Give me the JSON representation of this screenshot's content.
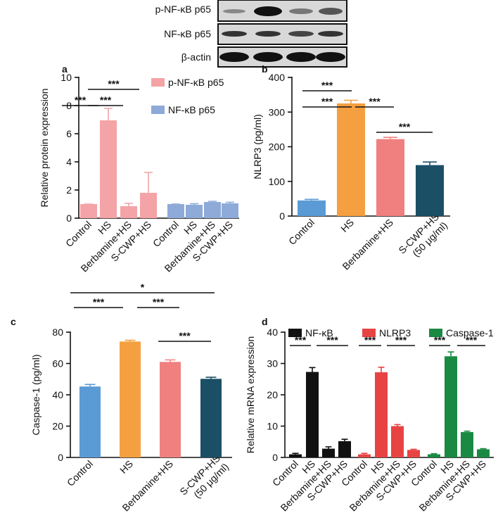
{
  "blot": {
    "rows": [
      "p-NF-κB p65",
      "NF-κB p65",
      "β-actin"
    ]
  },
  "chart_data": [
    {
      "type": "bar",
      "label": "a",
      "ylabel": "Relative protein expression",
      "categories": [
        "Control",
        "HS",
        "Berbamine+HS",
        "S-CWP+HS",
        "Control",
        "HS",
        "Berbamine+HS",
        "S-CWP+HS"
      ],
      "series": [
        {
          "name": "p-NF-κB p65",
          "color": "#f4a3a6",
          "values": [
            1,
            6.95,
            0.85,
            1.8,
            null,
            null,
            null,
            null
          ],
          "errors": [
            0,
            0.85,
            0.2,
            1.45,
            null,
            null,
            null,
            null
          ]
        },
        {
          "name": "NF-κB p65",
          "color": "#8eaad8",
          "values": [
            null,
            null,
            null,
            null,
            1,
            0.95,
            1.15,
            1.05
          ],
          "errors": [
            null,
            null,
            null,
            null,
            0,
            0.08,
            0.05,
            0.08
          ]
        }
      ],
      "ylim": [
        0,
        10
      ],
      "yticks": [
        0,
        2,
        4,
        6,
        8,
        10
      ],
      "annotations": [
        "***",
        "***",
        "***"
      ]
    },
    {
      "type": "bar",
      "label": "b",
      "ylabel": "NLRP3 (pg/ml)",
      "categories": [
        "Control",
        "HS",
        "Berbamine+HS",
        [
          "S-CWP+HS",
          "(50 μg/ml)"
        ]
      ],
      "values": [
        45,
        325,
        222,
        147
      ],
      "errors": [
        3,
        9,
        5,
        9
      ],
      "colors": [
        "#5b9bd5",
        "#f4a040",
        "#f08080",
        "#1b4f66"
      ],
      "ylim": [
        0,
        400
      ],
      "yticks": [
        0,
        100,
        200,
        300,
        400
      ],
      "annotations": [
        "***",
        "***",
        "***",
        "***"
      ]
    },
    {
      "type": "bar",
      "label": "c",
      "ylabel": "Caspase-1  (pg/ml)",
      "categories": [
        "Control",
        "HS",
        "Berbamine+HS",
        [
          "S-CWP+HS",
          "(50 μg/ml)"
        ]
      ],
      "values": [
        45.3,
        74,
        61,
        50.2
      ],
      "errors": [
        1.3,
        0.8,
        1.3,
        1
      ],
      "colors": [
        "#5b9bd5",
        "#f4a040",
        "#f08080",
        "#1b4f66"
      ],
      "ylim": [
        0,
        80
      ],
      "yticks": [
        0,
        20,
        40,
        60,
        80
      ],
      "annotations": [
        "*",
        "***",
        "***",
        "***"
      ]
    },
    {
      "type": "bar",
      "label": "d",
      "ylabel": "Relative mRNA expression",
      "categories": [
        "Control",
        "HS",
        "Berbamine+HS",
        "S-CWP+HS",
        "Control",
        "HS",
        "Berbamine+HS",
        "S-CWP+HS",
        "Control",
        "HS",
        "Berbamine+HS",
        "S-CWP+HS"
      ],
      "series": [
        {
          "name": "NF-κB",
          "color": "#111111",
          "values": [
            1,
            27.3,
            2.8,
            5.2,
            null,
            null,
            null,
            null,
            null,
            null,
            null,
            null
          ],
          "errors": [
            0.3,
            1.4,
            0.6,
            0.6,
            null,
            null,
            null,
            null,
            null,
            null,
            null,
            null
          ]
        },
        {
          "name": "NLRP3",
          "color": "#e84343",
          "values": [
            null,
            null,
            null,
            null,
            1,
            27.2,
            10,
            2.4,
            null,
            null,
            null,
            null
          ],
          "errors": [
            null,
            null,
            null,
            null,
            0.3,
            1.6,
            0.5,
            0.2,
            null,
            null,
            null,
            null
          ]
        },
        {
          "name": "Caspase-1",
          "color": "#1a8a43",
          "values": [
            null,
            null,
            null,
            null,
            null,
            null,
            null,
            null,
            1,
            32.3,
            8.1,
            2.6
          ],
          "errors": [
            null,
            null,
            null,
            null,
            null,
            null,
            null,
            null,
            0.2,
            1.4,
            0.3,
            0.2
          ]
        }
      ],
      "ylim": [
        0,
        40
      ],
      "yticks": [
        0,
        10,
        20,
        30,
        40
      ],
      "annotations": [
        "***",
        "***",
        "***",
        "***",
        "***",
        "***"
      ]
    }
  ]
}
